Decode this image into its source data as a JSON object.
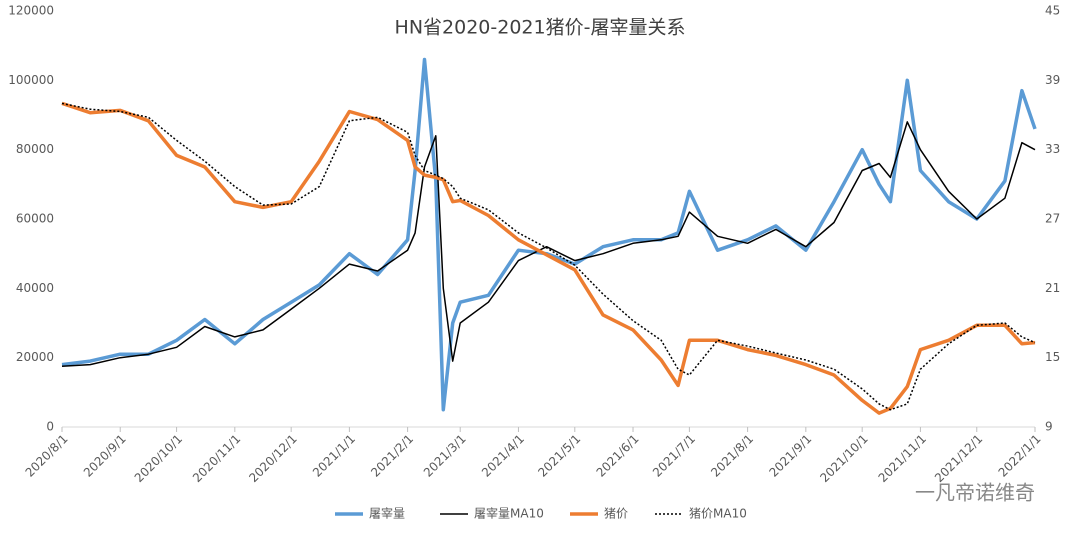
{
  "chart_data": {
    "type": "line",
    "title": "HN省2020-2021猪价-屠宰量关系",
    "x": [
      "2020/8/1",
      "2020/8/16",
      "2020/9/1",
      "2020/9/16",
      "2020/10/1",
      "2020/10/16",
      "2020/11/1",
      "2020/11/16",
      "2020/12/1",
      "2020/12/16",
      "2021/1/1",
      "2021/1/16",
      "2021/2/1",
      "2021/2/5",
      "2021/2/10",
      "2021/2/16",
      "2021/2/20",
      "2021/2/25",
      "2021/3/1",
      "2021/3/16",
      "2021/4/1",
      "2021/4/16",
      "2021/5/1",
      "2021/5/16",
      "2021/6/1",
      "2021/6/16",
      "2021/6/25",
      "2021/7/1",
      "2021/7/16",
      "2021/8/1",
      "2021/8/16",
      "2021/9/1",
      "2021/9/16",
      "2021/10/1",
      "2021/10/10",
      "2021/10/16",
      "2021/10/25",
      "2021/11/1",
      "2021/11/16",
      "2021/12/1",
      "2021/12/16",
      "2021/12/25",
      "2022/1/1"
    ],
    "series": [
      {
        "name": "屠宰量",
        "color": "#5b9bd5",
        "width": 3.5,
        "dash": "none",
        "axis": "y",
        "values": [
          18000,
          19000,
          21000,
          21000,
          25000,
          31000,
          24000,
          31000,
          36000,
          41000,
          50000,
          44000,
          54000,
          74000,
          106000,
          71000,
          5000,
          30000,
          36000,
          38000,
          51000,
          50000,
          47000,
          52000,
          54000,
          54000,
          56000,
          68000,
          51000,
          54000,
          58000,
          51000,
          65000,
          80000,
          70000,
          65000,
          100000,
          74000,
          65000,
          60000,
          71000,
          97000,
          86000
        ]
      },
      {
        "name": "屠宰量MA10",
        "color": "#000000",
        "width": 1.5,
        "dash": "none",
        "axis": "y",
        "values": [
          17500,
          18000,
          20000,
          21000,
          23000,
          29000,
          26000,
          28000,
          34000,
          40000,
          47000,
          45000,
          51000,
          56000,
          75000,
          84000,
          40000,
          19000,
          30000,
          36000,
          48000,
          52000,
          48000,
          50000,
          53000,
          54000,
          55000,
          62000,
          55000,
          53000,
          57000,
          52000,
          59000,
          74000,
          76000,
          72000,
          88000,
          80000,
          68000,
          60000,
          66000,
          82000,
          80000
        ]
      },
      {
        "name": "猪价",
        "color": "#ed7d31",
        "width": 3.5,
        "dash": "none",
        "axis": "y2",
        "values": [
          37.0,
          36.2,
          36.4,
          35.5,
          32.5,
          31.5,
          28.5,
          28.0,
          28.5,
          32.0,
          36.3,
          35.6,
          33.8,
          31.5,
          30.8,
          30.6,
          30.4,
          28.5,
          28.6,
          27.3,
          25.2,
          23.9,
          22.6,
          18.7,
          17.4,
          14.8,
          12.6,
          16.5,
          16.5,
          15.7,
          15.2,
          14.4,
          13.5,
          11.3,
          10.2,
          10.6,
          12.5,
          15.7,
          16.5,
          17.8,
          17.8,
          16.2,
          16.3
        ]
      },
      {
        "name": "猪价MA10",
        "color": "#000000",
        "width": 1.5,
        "dash": "2 2",
        "axis": "y2",
        "values": [
          37.0,
          36.5,
          36.3,
          35.8,
          33.8,
          32.0,
          29.8,
          28.2,
          28.3,
          29.8,
          35.5,
          35.8,
          34.5,
          32.5,
          31.2,
          30.8,
          30.5,
          29.8,
          28.8,
          27.8,
          25.8,
          24.5,
          23.0,
          20.5,
          18.2,
          16.5,
          14.0,
          13.5,
          16.5,
          16.0,
          15.4,
          14.8,
          14.0,
          12.3,
          11.0,
          10.5,
          11.0,
          14.0,
          16.2,
          17.8,
          18.0,
          16.8,
          16.3
        ]
      }
    ],
    "xlim": [
      "2020/8/1",
      "2022/1/1"
    ],
    "xticks": [
      "2020/8/1",
      "2020/9/1",
      "2020/10/1",
      "2020/11/1",
      "2020/12/1",
      "2021/1/1",
      "2021/2/1",
      "2021/3/1",
      "2021/4/1",
      "2021/5/1",
      "2021/6/1",
      "2021/7/1",
      "2021/8/1",
      "2021/9/1",
      "2021/10/1",
      "2021/11/1",
      "2021/12/1",
      "2022/1/1"
    ],
    "ylim": [
      0,
      120000
    ],
    "yticks": [
      0,
      20000,
      40000,
      60000,
      80000,
      100000,
      120000
    ],
    "y2lim": [
      9,
      45
    ],
    "y2ticks": [
      9,
      15,
      21,
      27,
      33,
      39,
      45
    ],
    "legend": "bottom",
    "watermark": "一凡帝诺维奇"
  }
}
